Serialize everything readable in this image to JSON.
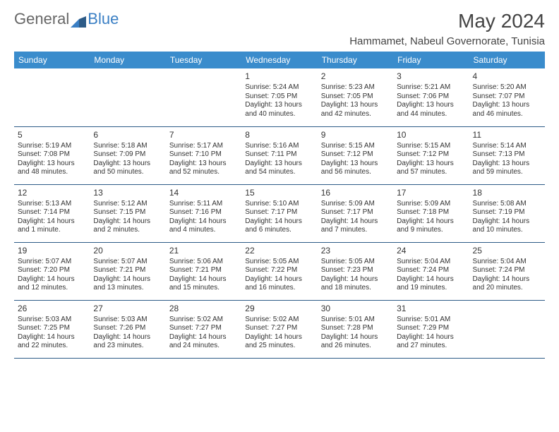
{
  "logo": {
    "text1": "General",
    "text2": "Blue"
  },
  "title": "May 2024",
  "subtitle": "Hammamet, Nabeul Governorate, Tunisia",
  "headers": [
    "Sunday",
    "Monday",
    "Tuesday",
    "Wednesday",
    "Thursday",
    "Friday",
    "Saturday"
  ],
  "colors": {
    "header_bg": "#3a8ccc",
    "header_fg": "#ffffff",
    "border": "#2d5b87",
    "title_color": "#444444",
    "text_color": "#333333",
    "logo_gray": "#666666",
    "logo_blue": "#3a7fc4"
  },
  "weeks": [
    [
      null,
      null,
      null,
      {
        "n": "1",
        "sr": "Sunrise: 5:24 AM",
        "ss": "Sunset: 7:05 PM",
        "d1": "Daylight: 13 hours",
        "d2": "and 40 minutes."
      },
      {
        "n": "2",
        "sr": "Sunrise: 5:23 AM",
        "ss": "Sunset: 7:05 PM",
        "d1": "Daylight: 13 hours",
        "d2": "and 42 minutes."
      },
      {
        "n": "3",
        "sr": "Sunrise: 5:21 AM",
        "ss": "Sunset: 7:06 PM",
        "d1": "Daylight: 13 hours",
        "d2": "and 44 minutes."
      },
      {
        "n": "4",
        "sr": "Sunrise: 5:20 AM",
        "ss": "Sunset: 7:07 PM",
        "d1": "Daylight: 13 hours",
        "d2": "and 46 minutes."
      }
    ],
    [
      {
        "n": "5",
        "sr": "Sunrise: 5:19 AM",
        "ss": "Sunset: 7:08 PM",
        "d1": "Daylight: 13 hours",
        "d2": "and 48 minutes."
      },
      {
        "n": "6",
        "sr": "Sunrise: 5:18 AM",
        "ss": "Sunset: 7:09 PM",
        "d1": "Daylight: 13 hours",
        "d2": "and 50 minutes."
      },
      {
        "n": "7",
        "sr": "Sunrise: 5:17 AM",
        "ss": "Sunset: 7:10 PM",
        "d1": "Daylight: 13 hours",
        "d2": "and 52 minutes."
      },
      {
        "n": "8",
        "sr": "Sunrise: 5:16 AM",
        "ss": "Sunset: 7:11 PM",
        "d1": "Daylight: 13 hours",
        "d2": "and 54 minutes."
      },
      {
        "n": "9",
        "sr": "Sunrise: 5:15 AM",
        "ss": "Sunset: 7:12 PM",
        "d1": "Daylight: 13 hours",
        "d2": "and 56 minutes."
      },
      {
        "n": "10",
        "sr": "Sunrise: 5:15 AM",
        "ss": "Sunset: 7:12 PM",
        "d1": "Daylight: 13 hours",
        "d2": "and 57 minutes."
      },
      {
        "n": "11",
        "sr": "Sunrise: 5:14 AM",
        "ss": "Sunset: 7:13 PM",
        "d1": "Daylight: 13 hours",
        "d2": "and 59 minutes."
      }
    ],
    [
      {
        "n": "12",
        "sr": "Sunrise: 5:13 AM",
        "ss": "Sunset: 7:14 PM",
        "d1": "Daylight: 14 hours",
        "d2": "and 1 minute."
      },
      {
        "n": "13",
        "sr": "Sunrise: 5:12 AM",
        "ss": "Sunset: 7:15 PM",
        "d1": "Daylight: 14 hours",
        "d2": "and 2 minutes."
      },
      {
        "n": "14",
        "sr": "Sunrise: 5:11 AM",
        "ss": "Sunset: 7:16 PM",
        "d1": "Daylight: 14 hours",
        "d2": "and 4 minutes."
      },
      {
        "n": "15",
        "sr": "Sunrise: 5:10 AM",
        "ss": "Sunset: 7:17 PM",
        "d1": "Daylight: 14 hours",
        "d2": "and 6 minutes."
      },
      {
        "n": "16",
        "sr": "Sunrise: 5:09 AM",
        "ss": "Sunset: 7:17 PM",
        "d1": "Daylight: 14 hours",
        "d2": "and 7 minutes."
      },
      {
        "n": "17",
        "sr": "Sunrise: 5:09 AM",
        "ss": "Sunset: 7:18 PM",
        "d1": "Daylight: 14 hours",
        "d2": "and 9 minutes."
      },
      {
        "n": "18",
        "sr": "Sunrise: 5:08 AM",
        "ss": "Sunset: 7:19 PM",
        "d1": "Daylight: 14 hours",
        "d2": "and 10 minutes."
      }
    ],
    [
      {
        "n": "19",
        "sr": "Sunrise: 5:07 AM",
        "ss": "Sunset: 7:20 PM",
        "d1": "Daylight: 14 hours",
        "d2": "and 12 minutes."
      },
      {
        "n": "20",
        "sr": "Sunrise: 5:07 AM",
        "ss": "Sunset: 7:21 PM",
        "d1": "Daylight: 14 hours",
        "d2": "and 13 minutes."
      },
      {
        "n": "21",
        "sr": "Sunrise: 5:06 AM",
        "ss": "Sunset: 7:21 PM",
        "d1": "Daylight: 14 hours",
        "d2": "and 15 minutes."
      },
      {
        "n": "22",
        "sr": "Sunrise: 5:05 AM",
        "ss": "Sunset: 7:22 PM",
        "d1": "Daylight: 14 hours",
        "d2": "and 16 minutes."
      },
      {
        "n": "23",
        "sr": "Sunrise: 5:05 AM",
        "ss": "Sunset: 7:23 PM",
        "d1": "Daylight: 14 hours",
        "d2": "and 18 minutes."
      },
      {
        "n": "24",
        "sr": "Sunrise: 5:04 AM",
        "ss": "Sunset: 7:24 PM",
        "d1": "Daylight: 14 hours",
        "d2": "and 19 minutes."
      },
      {
        "n": "25",
        "sr": "Sunrise: 5:04 AM",
        "ss": "Sunset: 7:24 PM",
        "d1": "Daylight: 14 hours",
        "d2": "and 20 minutes."
      }
    ],
    [
      {
        "n": "26",
        "sr": "Sunrise: 5:03 AM",
        "ss": "Sunset: 7:25 PM",
        "d1": "Daylight: 14 hours",
        "d2": "and 22 minutes."
      },
      {
        "n": "27",
        "sr": "Sunrise: 5:03 AM",
        "ss": "Sunset: 7:26 PM",
        "d1": "Daylight: 14 hours",
        "d2": "and 23 minutes."
      },
      {
        "n": "28",
        "sr": "Sunrise: 5:02 AM",
        "ss": "Sunset: 7:27 PM",
        "d1": "Daylight: 14 hours",
        "d2": "and 24 minutes."
      },
      {
        "n": "29",
        "sr": "Sunrise: 5:02 AM",
        "ss": "Sunset: 7:27 PM",
        "d1": "Daylight: 14 hours",
        "d2": "and 25 minutes."
      },
      {
        "n": "30",
        "sr": "Sunrise: 5:01 AM",
        "ss": "Sunset: 7:28 PM",
        "d1": "Daylight: 14 hours",
        "d2": "and 26 minutes."
      },
      {
        "n": "31",
        "sr": "Sunrise: 5:01 AM",
        "ss": "Sunset: 7:29 PM",
        "d1": "Daylight: 14 hours",
        "d2": "and 27 minutes."
      },
      null
    ]
  ]
}
